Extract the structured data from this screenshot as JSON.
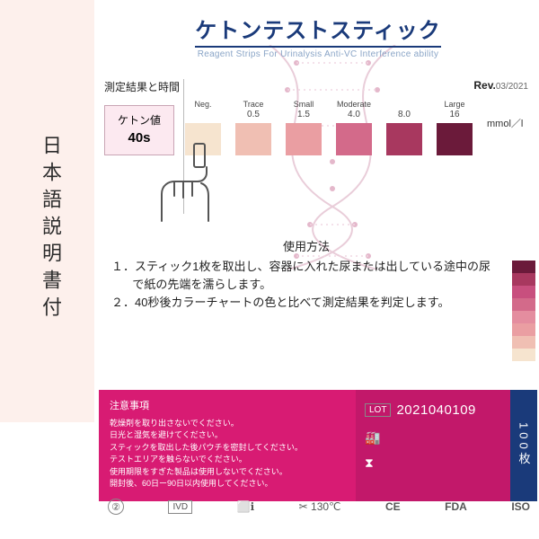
{
  "left_label": "日本語説明書付",
  "title": {
    "jp": "ケトンテストスティック",
    "en": "Reagent Strips For Urinalysis Anti-VC Interference ability"
  },
  "chart": {
    "header_left": "測定結果と時間",
    "rev_label": "Rev.",
    "rev_value": "03/2021",
    "ketone_label": "ケトン値",
    "ketone_time": "40s",
    "unit": "mmol／l",
    "swatches": [
      {
        "top": "Neg.",
        "num": "",
        "color": "#f6e4cf"
      },
      {
        "top": "Trace",
        "num": "0.5",
        "color": "#f0bfb3"
      },
      {
        "top": "Small",
        "num": "1.5",
        "color": "#ea9ea2"
      },
      {
        "top": "Moderate",
        "num": "4.0",
        "color": "#d36a8a"
      },
      {
        "top": "",
        "num": "8.0",
        "color": "#a8385f"
      },
      {
        "top": "Large",
        "num": "16",
        "color": "#6b1a3a"
      }
    ]
  },
  "side_swatch_colors": [
    "#6b1a3a",
    "#a8385f",
    "#c84f7e",
    "#d36a8a",
    "#e48d9f",
    "#ea9ea2",
    "#f0bfb3",
    "#f6e4cf"
  ],
  "usage": {
    "title": "使用方法",
    "lines": [
      "１．スティック1枚を取出し、容器に入れた尿または出している途中の尿で紙の先端を濡らします。",
      "２．40秒後カラーチャートの色と比べて測定結果を判定します。"
    ]
  },
  "caution": {
    "header": "注意事項",
    "lines": [
      "乾燥剤を取り出さないでください。",
      "日光と湿気を避けてください。",
      "スティックを取出した後パウチを密封してください。",
      "テストエリアを触らないでください。",
      "使用期限をすぎた製品は使用しないでください。",
      "開封後、60日ー90日以内使用してください。"
    ],
    "lot_label": "LOT",
    "lot_number": "2021040109",
    "qty": "100枚"
  },
  "certs": {
    "c1": "②",
    "c2": "IVD",
    "c3": "⬜ℹ",
    "c4": "✂ 130℃",
    "c5": "CE",
    "c6": "FDA",
    "c7": "ISO"
  },
  "helix_colors": {
    "strand": "#d36a8a",
    "dots": "#c84f7e"
  }
}
